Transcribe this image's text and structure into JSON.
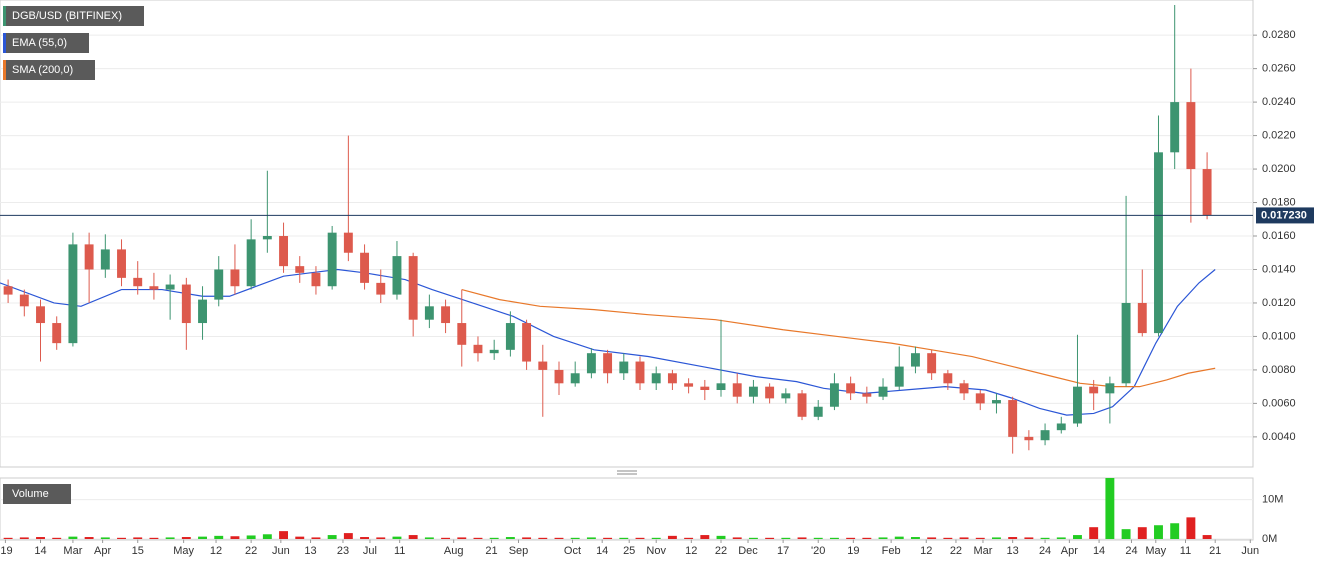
{
  "chart_data": {
    "type": "candlestick",
    "title": "DGB/USD (BITFINEX)",
    "up_color": "#3d9470",
    "down_color": "#dd5a4d",
    "x": [
      3,
      9,
      15,
      21,
      27,
      33,
      39,
      45,
      51,
      57,
      63,
      69,
      75,
      81,
      87,
      93,
      99,
      105,
      111,
      117,
      123,
      129,
      135,
      141,
      147,
      153,
      159,
      165,
      171,
      177,
      183,
      189,
      195,
      201,
      207,
      213,
      219,
      225,
      231,
      237,
      243,
      249,
      255,
      261,
      267,
      273,
      279,
      285,
      291,
      297,
      303,
      309,
      315,
      321,
      327,
      333,
      339,
      345,
      351,
      357,
      363,
      369,
      375,
      381,
      387,
      393,
      399,
      405,
      411,
      417,
      423,
      429,
      435,
      441,
      447
    ],
    "open": [
      0.013,
      0.0125,
      0.0118,
      0.0108,
      0.0096,
      0.0155,
      0.014,
      0.0152,
      0.0135,
      0.013,
      0.0128,
      0.0131,
      0.0108,
      0.0122,
      0.014,
      0.013,
      0.0158,
      0.016,
      0.0142,
      0.0138,
      0.013,
      0.0162,
      0.015,
      0.0132,
      0.0125,
      0.0148,
      0.011,
      0.0118,
      0.0108,
      0.0095,
      0.009,
      0.0092,
      0.0108,
      0.0085,
      0.008,
      0.0072,
      0.0078,
      0.009,
      0.0078,
      0.0085,
      0.0072,
      0.0078,
      0.0072,
      0.007,
      0.0068,
      0.0072,
      0.0064,
      0.007,
      0.0063,
      0.0066,
      0.0052,
      0.0058,
      0.0072,
      0.0066,
      0.0064,
      0.007,
      0.0082,
      0.009,
      0.0078,
      0.0072,
      0.0066,
      0.006,
      0.0062,
      0.004,
      0.0038,
      0.0044,
      0.0048,
      0.007,
      0.0066,
      0.0072,
      0.012,
      0.0102,
      0.021,
      0.024,
      0.02
    ],
    "high": [
      0.0134,
      0.0128,
      0.0122,
      0.0112,
      0.0162,
      0.0162,
      0.0161,
      0.0158,
      0.0145,
      0.0138,
      0.0137,
      0.0135,
      0.013,
      0.0148,
      0.0155,
      0.017,
      0.0199,
      0.0168,
      0.0148,
      0.0142,
      0.0166,
      0.022,
      0.0155,
      0.014,
      0.0157,
      0.015,
      0.0125,
      0.0122,
      0.0128,
      0.01,
      0.0098,
      0.0115,
      0.011,
      0.0095,
      0.0085,
      0.0085,
      0.0093,
      0.0092,
      0.009,
      0.0088,
      0.0082,
      0.008,
      0.0075,
      0.0074,
      0.011,
      0.0078,
      0.0074,
      0.0072,
      0.0069,
      0.0068,
      0.0062,
      0.0078,
      0.0076,
      0.007,
      0.0075,
      0.0094,
      0.0094,
      0.0092,
      0.008,
      0.0074,
      0.0068,
      0.0066,
      0.0064,
      0.0044,
      0.0048,
      0.0052,
      0.0101,
      0.0074,
      0.0076,
      0.0184,
      0.014,
      0.0232,
      0.0298,
      0.026,
      0.021
    ],
    "low": [
      0.012,
      0.0112,
      0.0085,
      0.0092,
      0.0094,
      0.012,
      0.0135,
      0.013,
      0.0125,
      0.0122,
      0.011,
      0.0092,
      0.0098,
      0.0118,
      0.0125,
      0.0128,
      0.015,
      0.0138,
      0.0132,
      0.0125,
      0.0128,
      0.0145,
      0.0128,
      0.012,
      0.0122,
      0.01,
      0.0105,
      0.0102,
      0.0082,
      0.0085,
      0.0086,
      0.0088,
      0.008,
      0.0052,
      0.0065,
      0.007,
      0.0075,
      0.0072,
      0.0074,
      0.0068,
      0.0068,
      0.0068,
      0.0066,
      0.0062,
      0.0064,
      0.006,
      0.006,
      0.006,
      0.006,
      0.005,
      0.005,
      0.0056,
      0.0062,
      0.006,
      0.0062,
      0.0068,
      0.0078,
      0.0074,
      0.0068,
      0.0062,
      0.0056,
      0.0054,
      0.003,
      0.0032,
      0.0035,
      0.0042,
      0.0046,
      0.0056,
      0.0048,
      0.007,
      0.01,
      0.01,
      0.02,
      0.0168,
      0.017
    ],
    "close": [
      0.0125,
      0.0118,
      0.0108,
      0.0096,
      0.0155,
      0.014,
      0.0152,
      0.0135,
      0.013,
      0.0128,
      0.0131,
      0.0108,
      0.0122,
      0.014,
      0.013,
      0.0158,
      0.016,
      0.0142,
      0.0138,
      0.013,
      0.0162,
      0.015,
      0.0132,
      0.0125,
      0.0148,
      0.011,
      0.0118,
      0.0108,
      0.0095,
      0.009,
      0.0092,
      0.0108,
      0.0085,
      0.008,
      0.0072,
      0.0078,
      0.009,
      0.0078,
      0.0085,
      0.0072,
      0.0078,
      0.0072,
      0.007,
      0.0068,
      0.0072,
      0.0064,
      0.007,
      0.0063,
      0.0066,
      0.0052,
      0.0058,
      0.0072,
      0.0066,
      0.0064,
      0.007,
      0.0082,
      0.009,
      0.0078,
      0.0072,
      0.0066,
      0.006,
      0.0062,
      0.004,
      0.0038,
      0.0044,
      0.0048,
      0.007,
      0.0066,
      0.0072,
      0.012,
      0.0102,
      0.021,
      0.024,
      0.02,
      0.01723
    ],
    "xlim": [
      0,
      464
    ],
    "xticks": [
      {
        "value": 2,
        "label": "'19"
      },
      {
        "value": 15,
        "label": "14"
      },
      {
        "value": 27,
        "label": "Mar"
      },
      {
        "value": 38,
        "label": "Apr"
      },
      {
        "value": 51,
        "label": "15"
      },
      {
        "value": 68,
        "label": "May"
      },
      {
        "value": 80,
        "label": "12"
      },
      {
        "value": 93,
        "label": "22"
      },
      {
        "value": 104,
        "label": "Jun"
      },
      {
        "value": 115,
        "label": "13"
      },
      {
        "value": 127,
        "label": "23"
      },
      {
        "value": 137,
        "label": "Jul"
      },
      {
        "value": 148,
        "label": "11"
      },
      {
        "value": 168,
        "label": "Aug"
      },
      {
        "value": 182,
        "label": "21"
      },
      {
        "value": 192,
        "label": "Sep"
      },
      {
        "value": 212,
        "label": "Oct"
      },
      {
        "value": 223,
        "label": "14"
      },
      {
        "value": 233,
        "label": "25"
      },
      {
        "value": 243,
        "label": "Nov"
      },
      {
        "value": 256,
        "label": "12"
      },
      {
        "value": 267,
        "label": "22"
      },
      {
        "value": 277,
        "label": "Dec"
      },
      {
        "value": 290,
        "label": "17"
      },
      {
        "value": 303,
        "label": "'20"
      },
      {
        "value": 316,
        "label": "19"
      },
      {
        "value": 330,
        "label": "Feb"
      },
      {
        "value": 343,
        "label": "12"
      },
      {
        "value": 354,
        "label": "22"
      },
      {
        "value": 364,
        "label": "Mar"
      },
      {
        "value": 375,
        "label": "13"
      },
      {
        "value": 387,
        "label": "24"
      },
      {
        "value": 396,
        "label": "Apr"
      },
      {
        "value": 407,
        "label": "14"
      },
      {
        "value": 419,
        "label": "24"
      },
      {
        "value": 428,
        "label": "May"
      },
      {
        "value": 439,
        "label": "11"
      },
      {
        "value": 450,
        "label": "21"
      },
      {
        "value": 463,
        "label": "Jun"
      }
    ],
    "ylim": [
      0.0022,
      0.0301
    ],
    "yticks": [
      {
        "value": 0.004,
        "label": "0.0040"
      },
      {
        "value": 0.006,
        "label": "0.0060"
      },
      {
        "value": 0.008,
        "label": "0.0080"
      },
      {
        "value": 0.01,
        "label": "0.0100"
      },
      {
        "value": 0.012,
        "label": "0.0120"
      },
      {
        "value": 0.014,
        "label": "0.0140"
      },
      {
        "value": 0.016,
        "label": "0.0160"
      },
      {
        "value": 0.018,
        "label": "0.0180"
      },
      {
        "value": 0.02,
        "label": "0.0200"
      },
      {
        "value": 0.022,
        "label": "0.0220"
      },
      {
        "value": 0.024,
        "label": "0.0240"
      },
      {
        "value": 0.026,
        "label": "0.0260"
      },
      {
        "value": 0.028,
        "label": "0.0280"
      }
    ],
    "grid": true,
    "last_price": {
      "value": 0.01723,
      "label": "0.017230"
    },
    "overlays": [
      {
        "name": "EMA (55,0)",
        "color": "#2b56d6",
        "x": [
          0,
          20,
          30,
          45,
          60,
          75,
          85,
          95,
          105,
          115,
          125,
          135,
          150,
          160,
          175,
          190,
          205,
          220,
          240,
          260,
          280,
          295,
          305,
          320,
          335,
          350,
          365,
          375,
          385,
          395,
          405,
          412,
          420,
          428,
          436,
          444,
          450
        ],
        "values": [
          0.0132,
          0.012,
          0.0118,
          0.0128,
          0.0128,
          0.0124,
          0.0124,
          0.013,
          0.0136,
          0.0138,
          0.014,
          0.0138,
          0.0134,
          0.0128,
          0.012,
          0.0112,
          0.01,
          0.0092,
          0.0088,
          0.0082,
          0.0076,
          0.0073,
          0.0069,
          0.0066,
          0.0068,
          0.007,
          0.0068,
          0.0063,
          0.0057,
          0.0053,
          0.0054,
          0.0058,
          0.007,
          0.0096,
          0.0118,
          0.0132,
          0.014
        ]
      },
      {
        "name": "SMA (200,0)",
        "color": "#e8782a",
        "x": [
          171,
          185,
          200,
          220,
          240,
          265,
          290,
          310,
          330,
          345,
          360,
          375,
          390,
          400,
          412,
          422,
          432,
          440,
          450
        ],
        "values": [
          0.0128,
          0.0122,
          0.0118,
          0.0116,
          0.0113,
          0.011,
          0.0104,
          0.01,
          0.0096,
          0.0092,
          0.0088,
          0.0082,
          0.0076,
          0.0072,
          0.007,
          0.007,
          0.0074,
          0.0078,
          0.0081
        ]
      }
    ],
    "volume": {
      "name": "Volume",
      "up_color": "#22cc22",
      "down_color": "#e02020",
      "values": [
        300000,
        400000,
        500000,
        300000,
        600000,
        500000,
        400000,
        300000,
        400000,
        300000,
        400000,
        500000,
        600000,
        800000,
        700000,
        900000,
        1200000,
        2000000,
        600000,
        400000,
        1000000,
        1500000,
        500000,
        400000,
        600000,
        1000000,
        400000,
        300000,
        400000,
        300000,
        300000,
        500000,
        400000,
        300000,
        300000,
        300000,
        400000,
        300000,
        300000,
        300000,
        300000,
        800000,
        300000,
        1000000,
        800000,
        400000,
        300000,
        300000,
        300000,
        400000,
        300000,
        300000,
        300000,
        300000,
        400000,
        600000,
        500000,
        400000,
        300000,
        400000,
        300000,
        400000,
        500000,
        400000,
        300000,
        400000,
        1000000,
        3000000,
        15500000,
        2500000,
        3000000,
        3500000,
        4000000,
        5500000,
        1000000
      ],
      "ylim": [
        0,
        15500000
      ],
      "yticks": [
        {
          "value": 0,
          "label": "0M"
        },
        {
          "value": 10000000,
          "label": "10M"
        }
      ]
    }
  }
}
